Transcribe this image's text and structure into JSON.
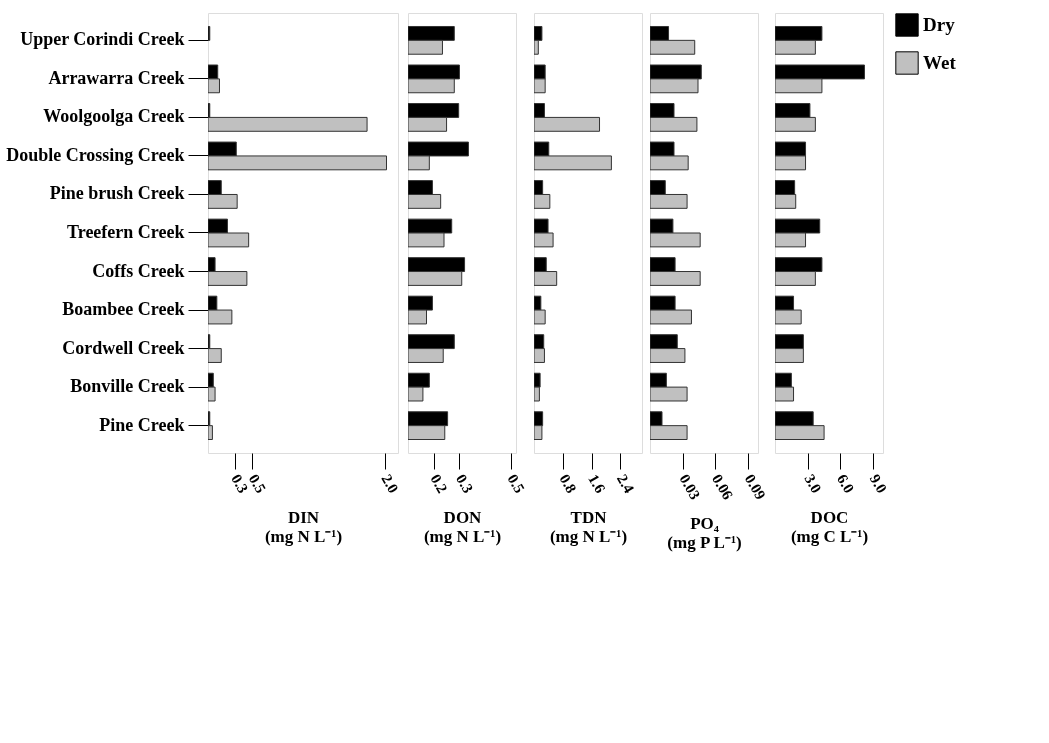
{
  "chart_data": [
    {
      "type": "bar",
      "orientation": "horizontal",
      "xlabel": "DIN\n(mg N L⁻¹)",
      "categories": [
        "Upper Corindi Creek",
        "Arrawarra Creek",
        "Woolgoolga Creek",
        "Double Crossing Creek",
        "Pine brush Creek",
        "Treefern Creek",
        "Coffs Creek",
        "Boambee Creek",
        "Cordwell Creek",
        "Bonville Creek",
        "Pine Creek"
      ],
      "series": [
        {
          "color": "#000000",
          "values": [
            0.02,
            0.11,
            0.02,
            0.32,
            0.15,
            0.22,
            0.08,
            0.1,
            0.02,
            0.06,
            0.02
          ]
        },
        {
          "color": "#c0c0c0",
          "values": [
            null,
            0.13,
            1.8,
            2.02,
            0.33,
            0.46,
            0.44,
            0.27,
            0.15,
            0.08,
            0.05
          ]
        }
      ],
      "xlim": [
        0,
        2.15
      ],
      "xticks": [
        0.3,
        0.5,
        {
          "value": 2,
          "label": "2.0"
        }
      ],
      "legend": false,
      "grid": false
    },
    {
      "type": "bar",
      "orientation": "horizontal",
      "xlabel": "DON\n(mg N L⁻¹)",
      "categories": [
        null,
        null,
        null,
        null,
        null,
        null,
        null,
        null,
        null,
        null,
        null
      ],
      "series": [
        {
          "color": "#000000",
          "values": [
            0.28,
            0.3,
            0.297,
            0.335,
            0.195,
            0.27,
            0.32,
            0.195,
            0.28,
            0.183,
            0.254
          ]
        },
        {
          "color": "#c0c0c0",
          "values": [
            0.234,
            0.28,
            0.25,
            0.183,
            0.227,
            0.24,
            0.309,
            0.172,
            0.237,
            0.158,
            0.243
          ]
        }
      ],
      "xlim": [
        0.1,
        0.52
      ],
      "xticks": [
        0.2,
        0.3,
        0.5
      ],
      "tick_labels": "x",
      "legend": false,
      "grid": false
    },
    {
      "type": "bar",
      "orientation": "horizontal",
      "xlabel": "TDN\n(mg N L⁻¹)",
      "categories": [
        null,
        null,
        null,
        null,
        null,
        null,
        null,
        null,
        null,
        null,
        null
      ],
      "series": [
        {
          "color": "#000000",
          "values": [
            0.22,
            0.31,
            0.29,
            0.41,
            0.24,
            0.39,
            0.34,
            0.19,
            0.27,
            0.17,
            0.24
          ]
        },
        {
          "color": "#c0c0c0",
          "values": [
            0.12,
            0.31,
            1.82,
            2.15,
            0.44,
            0.53,
            0.63,
            0.31,
            0.29,
            0.15,
            0.22
          ]
        }
      ],
      "xlim": [
        0,
        3.0
      ],
      "xticks": [
        0.8,
        1.6,
        2.4
      ],
      "tick_labels": "x",
      "legend": false,
      "grid": false
    },
    {
      "type": "bar",
      "orientation": "horizontal",
      "xlabel": "PO₄\n(mg P L⁻¹)",
      "categories": [
        null,
        null,
        null,
        null,
        null,
        null,
        null,
        null,
        null,
        null,
        null
      ],
      "series": [
        {
          "color": "#000000",
          "values": [
            0.017,
            0.047,
            0.022,
            0.022,
            0.014,
            0.021,
            0.023,
            0.023,
            0.025,
            0.015,
            0.011
          ]
        },
        {
          "color": "#c0c0c0",
          "values": [
            0.041,
            0.044,
            0.043,
            0.035,
            0.034,
            0.046,
            0.046,
            0.038,
            0.032,
            0.034,
            0.034
          ]
        }
      ],
      "xlim": [
        0,
        0.099
      ],
      "xticks": [
        {
          "value": 0.03,
          "label": "0.03"
        },
        {
          "value": 0.06,
          "label": "0.06"
        },
        {
          "value": 0.09,
          "label": "0.09"
        }
      ],
      "tick_labels": "x",
      "legend": false,
      "grid": false
    },
    {
      "type": "bar",
      "orientation": "horizontal",
      "xlabel": "DOC\n(mg C L⁻¹)",
      "categories": [
        null,
        null,
        null,
        null,
        null,
        null,
        null,
        null,
        null,
        null,
        null
      ],
      "series": [
        {
          "name": "Dry",
          "color": "#000000",
          "values": [
            4.3,
            8.2,
            3.2,
            2.8,
            1.8,
            4.1,
            4.3,
            1.7,
            2.6,
            1.5,
            3.5
          ]
        },
        {
          "name": "Wet",
          "color": "#c0c0c0",
          "values": [
            3.7,
            4.3,
            3.7,
            2.8,
            1.9,
            2.8,
            3.7,
            2.4,
            2.6,
            1.7,
            4.5
          ]
        }
      ],
      "xlim": [
        0,
        9.9
      ],
      "xticks": [
        {
          "value": 3.0,
          "label": "3.0"
        },
        {
          "value": 6.0,
          "label": "6.0"
        },
        {
          "value": 9.0,
          "label": "9.0"
        }
      ],
      "tick_labels": "x",
      "legend": "top right",
      "grid": false
    }
  ]
}
